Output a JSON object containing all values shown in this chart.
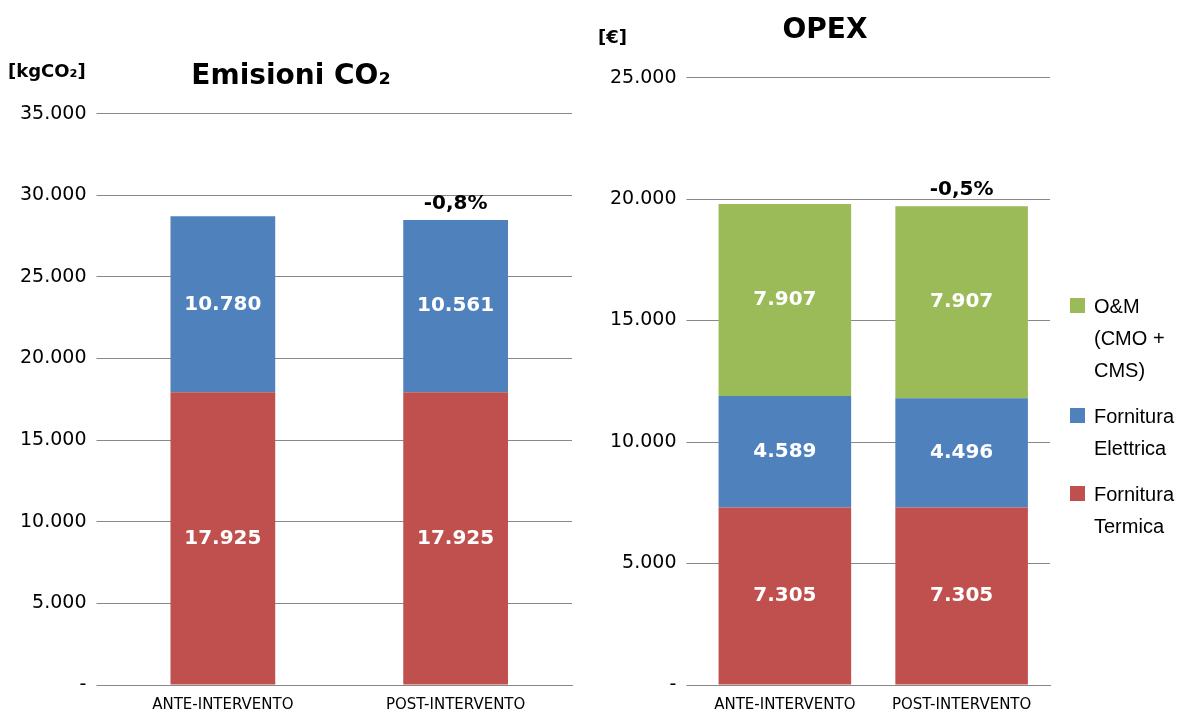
{
  "chart_data": [
    {
      "type": "bar",
      "title": "Emisioni CO₂",
      "ylabel": "[kgCO₂]",
      "stacked": true,
      "grid": "y",
      "legend": false,
      "categories": [
        "ANTE-INTERVENTO",
        "POST-INTERVENTO"
      ],
      "series": [
        {
          "color": "#c0504d",
          "values": [
            17925,
            17925
          ],
          "value_labels": [
            "17.925",
            "17.925"
          ]
        },
        {
          "color": "#4f81bd",
          "values": [
            10780,
            10561
          ],
          "value_labels": [
            "10.780",
            "10.561"
          ]
        }
      ],
      "ylim": [
        0,
        35000
      ],
      "yticks": [
        {
          "value": 0,
          "label": "-"
        },
        {
          "value": 5000,
          "label": "5.000"
        },
        {
          "value": 10000,
          "label": "10.000"
        },
        {
          "value": 15000,
          "label": "15.000"
        },
        {
          "value": 20000,
          "label": "20.000"
        },
        {
          "value": 25000,
          "label": "25.000"
        },
        {
          "value": 30000,
          "label": "30.000"
        },
        {
          "value": 35000,
          "label": "35.000"
        }
      ],
      "annotations": [
        {
          "text": "-0,8%",
          "x": "POST-INTERVENTO",
          "y": 28486
        }
      ]
    },
    {
      "type": "bar",
      "title": "OPEX",
      "ylabel": "[€]",
      "stacked": true,
      "grid": "y",
      "legend": "right",
      "categories": [
        "ANTE-INTERVENTO",
        "POST-INTERVENTO"
      ],
      "series": [
        {
          "name": "Fornitura Termica",
          "color": "#c0504d",
          "values": [
            7305,
            7305
          ],
          "value_labels": [
            "7.305",
            "7.305"
          ]
        },
        {
          "name": "Fornitura Elettrica",
          "color": "#4f81bd",
          "values": [
            4589,
            4496
          ],
          "value_labels": [
            "4.589",
            "4.496"
          ]
        },
        {
          "name": "O&M (CMO + CMS)",
          "color": "#9bbb59",
          "values": [
            7907,
            7907
          ],
          "value_labels": [
            "7.907",
            "7.907"
          ]
        }
      ],
      "ylim": [
        0,
        25000
      ],
      "yticks": [
        {
          "value": 0,
          "label": "-"
        },
        {
          "value": 5000,
          "label": "5.000"
        },
        {
          "value": 10000,
          "label": "10.000"
        },
        {
          "value": 15000,
          "label": "15.000"
        },
        {
          "value": 20000,
          "label": "20.000"
        },
        {
          "value": 25000,
          "label": "25.000"
        }
      ],
      "annotations": [
        {
          "text": "-0,5%",
          "x": "POST-INTERVENTO",
          "y": 19708
        }
      ]
    }
  ]
}
